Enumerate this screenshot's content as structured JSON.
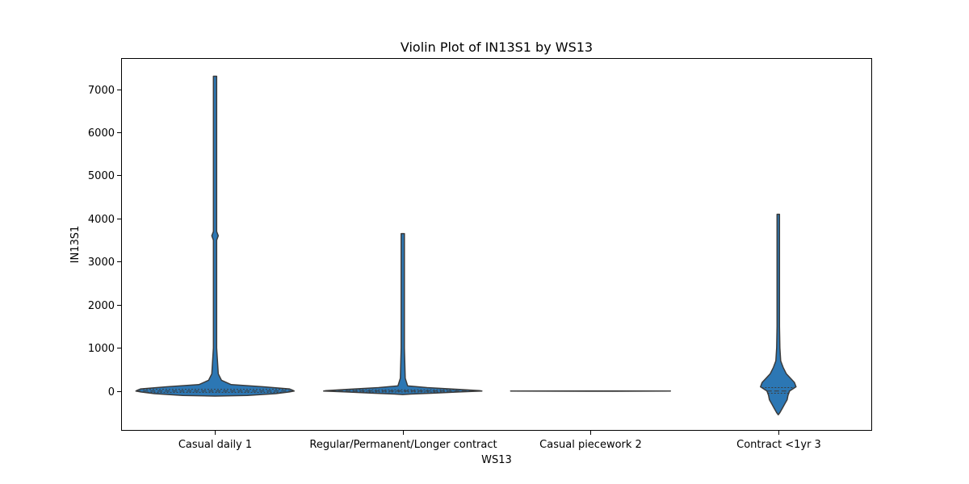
{
  "chart_data": {
    "type": "violin",
    "title": "Violin Plot of IN13S1 by WS13",
    "xlabel": "WS13",
    "ylabel": "IN13S1",
    "ylim": [
      -920,
      7720
    ],
    "yticks": [
      0,
      1000,
      2000,
      3000,
      4000,
      5000,
      6000,
      7000
    ],
    "grid": false,
    "legend": "none",
    "color": "#2c77b4",
    "edge_color": "#3b3b3b",
    "categories": [
      "Casual daily 1",
      "Regular/Permanent/Longer contract",
      "Casual piecework 2",
      "Contract <1yr 3"
    ],
    "violins": [
      {
        "category": "Casual daily 1",
        "profile": [
          [
            7300,
            2
          ],
          [
            5000,
            2
          ],
          [
            3700,
            2
          ],
          [
            3600,
            4
          ],
          [
            3500,
            2
          ],
          [
            2000,
            2
          ],
          [
            1000,
            2
          ],
          [
            400,
            4
          ],
          [
            250,
            8
          ],
          [
            150,
            20
          ],
          [
            100,
            60
          ],
          [
            50,
            92
          ],
          [
            20,
            96
          ],
          [
            0,
            98
          ],
          [
            -20,
            92
          ],
          [
            -60,
            75
          ],
          [
            -100,
            40
          ],
          [
            -115,
            0
          ]
        ],
        "quartiles": [
          -30,
          0,
          40
        ]
      },
      {
        "category": "Regular/Permanent/Longer contract",
        "profile": [
          [
            3650,
            2
          ],
          [
            2000,
            2
          ],
          [
            1000,
            2
          ],
          [
            300,
            3
          ],
          [
            120,
            6
          ],
          [
            80,
            30
          ],
          [
            40,
            70
          ],
          [
            10,
            95
          ],
          [
            0,
            98
          ],
          [
            -20,
            70
          ],
          [
            -50,
            35
          ],
          [
            -70,
            10
          ],
          [
            -80,
            0
          ]
        ],
        "quartiles": [
          -20,
          0,
          30
        ]
      },
      {
        "category": "Casual piecework 2",
        "profile": [
          [
            3,
            2
          ],
          [
            0,
            99
          ],
          [
            -3,
            2
          ]
        ],
        "quartiles": [
          0,
          0,
          0
        ]
      },
      {
        "category": "Contract <1yr 3",
        "profile": [
          [
            4100,
            1.5
          ],
          [
            3000,
            1.5
          ],
          [
            1500,
            1.5
          ],
          [
            1000,
            2
          ],
          [
            700,
            3
          ],
          [
            550,
            6
          ],
          [
            400,
            10
          ],
          [
            300,
            15
          ],
          [
            200,
            20
          ],
          [
            100,
            22
          ],
          [
            0,
            14
          ],
          [
            -100,
            12
          ],
          [
            -200,
            11
          ],
          [
            -300,
            8
          ],
          [
            -400,
            5
          ],
          [
            -500,
            2
          ],
          [
            -550,
            0
          ]
        ],
        "quartiles": [
          -50,
          0,
          80
        ]
      }
    ]
  }
}
